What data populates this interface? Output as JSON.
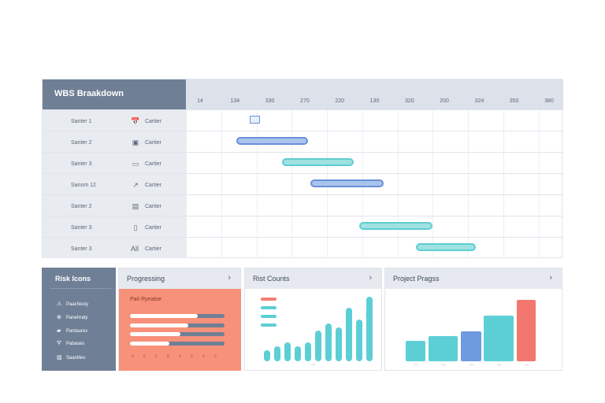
{
  "gantt": {
    "title": "WBS Braakdown",
    "ticks": [
      "14",
      "134",
      "330",
      "270",
      "220",
      "130",
      "320",
      "200",
      "324",
      "350",
      "380"
    ],
    "rows": [
      {
        "name": "Santer 1",
        "icon": "📅",
        "icon_name": "calendar-icon",
        "label": "Cartier"
      },
      {
        "name": "Santer 2",
        "icon": "▣",
        "icon_name": "box-icon",
        "label": "Cartier"
      },
      {
        "name": "Santer 3",
        "icon": "▭",
        "icon_name": "image-icon",
        "label": "Cartier"
      },
      {
        "name": "Sanom 12",
        "icon": "↗",
        "icon_name": "trend-icon",
        "label": "Cartier"
      },
      {
        "name": "Santer 2",
        "icon": "▤",
        "icon_name": "grid-icon",
        "label": "Cartier"
      },
      {
        "name": "Santer 3",
        "icon": "▯",
        "icon_name": "file-icon",
        "label": "Cartier"
      },
      {
        "name": "Santer 3",
        "icon": "All",
        "icon_name": "all-label-icon",
        "label": "Cartier"
      }
    ],
    "bars": [
      {
        "row": 0,
        "kind": "milestone",
        "color": "blue",
        "start": 0.17,
        "end": 0.215
      },
      {
        "row": 1,
        "kind": "bar",
        "color": "blue",
        "start": 0.133,
        "end": 0.323
      },
      {
        "row": 2,
        "kind": "bar",
        "color": "teal",
        "start": 0.254,
        "end": 0.444
      },
      {
        "row": 3,
        "kind": "bar",
        "color": "blue",
        "start": 0.329,
        "end": 0.523
      },
      {
        "row": 5,
        "kind": "bar",
        "color": "teal",
        "start": 0.459,
        "end": 0.653
      },
      {
        "row": 6,
        "kind": "bar",
        "color": "teal",
        "start": 0.61,
        "end": 0.769
      }
    ]
  },
  "risk_panel": {
    "title": "Risk Icons",
    "items": [
      {
        "icon": "⚠",
        "icon_name": "warning-icon",
        "label": "Paachesty"
      },
      {
        "icon": "⊕",
        "icon_name": "globe-icon",
        "label": "Panehraty"
      },
      {
        "icon": "▰",
        "icon_name": "card-icon",
        "label": "Pantaures"
      },
      {
        "icon": "⛛",
        "icon_name": "filter-icon",
        "label": "Pabases"
      },
      {
        "icon": "▨",
        "icon_name": "box-icon",
        "label": "Saanllies"
      }
    ]
  },
  "progress_card": {
    "title": "Progressing",
    "subtitle": "Pait Ryeatoe",
    "bars": [
      0.72,
      0.62,
      0.53,
      0.42
    ],
    "axis_marks": [
      "4",
      "6",
      "6",
      "8",
      "4",
      "6",
      "4",
      "6"
    ]
  },
  "risk_counts_card": {
    "title": "Rist Counts",
    "legend_colors": [
      "#f07f72",
      "#5ccfd5",
      "#5ccfd5",
      "#5ccfd5"
    ],
    "values": [
      3,
      4,
      5,
      4,
      5,
      8,
      10,
      9,
      14,
      11,
      17
    ],
    "axis_label": "—"
  },
  "project_progress_card": {
    "title": "Project Pragss",
    "bars": [
      {
        "value": 0.33,
        "color": "#5ccfd5"
      },
      {
        "value": 0.4,
        "color": "#5ccfd5"
      },
      {
        "value": 0.47,
        "color": "#6e9ae0"
      },
      {
        "value": 0.72,
        "color": "#5ccfd5"
      },
      {
        "value": 0.97,
        "color": "#f4776f"
      }
    ],
    "axis_marks": [
      "—",
      "—",
      "—",
      "—",
      "—"
    ]
  },
  "chevron": "›"
}
